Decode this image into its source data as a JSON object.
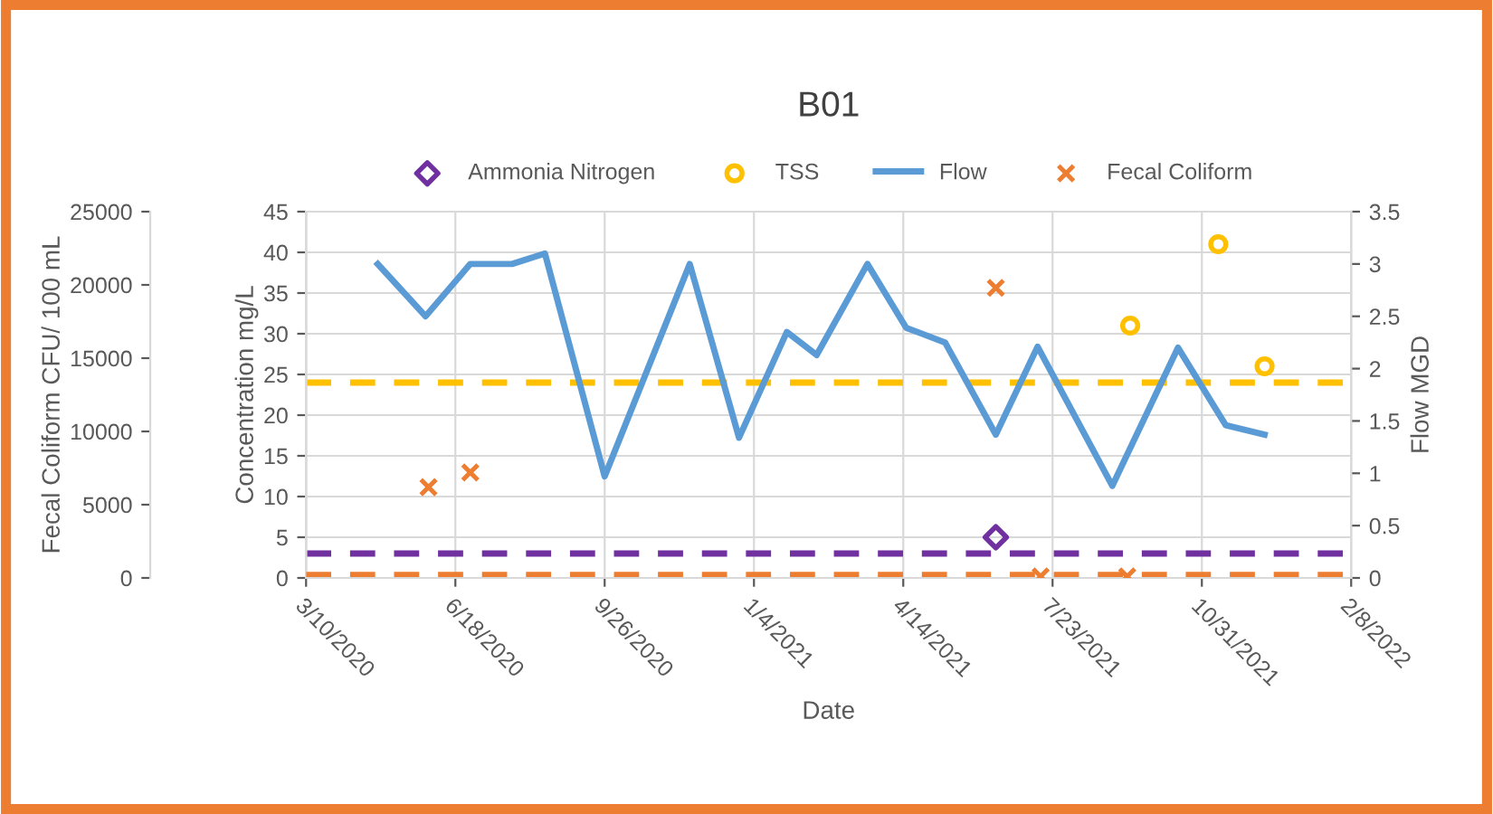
{
  "chart_data": {
    "type": "scatter",
    "title": "B01",
    "xlabel": "Date",
    "ylabel": "Concentration mg/L",
    "y2label": "Flow MGD",
    "y3label": "Fecal Coliform CFU/ 100 mL",
    "xlim": [
      "2020-03-10",
      "2022-02-08"
    ],
    "xticks": [
      {
        "value": "2020-03-10",
        "label": "3/10/2020"
      },
      {
        "value": "2020-06-18",
        "label": "6/18/2020"
      },
      {
        "value": "2020-09-26",
        "label": "9/26/2020"
      },
      {
        "value": "2021-01-04",
        "label": "1/4/2021"
      },
      {
        "value": "2021-04-14",
        "label": "4/14/2021"
      },
      {
        "value": "2021-07-23",
        "label": "7/23/2021"
      },
      {
        "value": "2021-10-31",
        "label": "10/31/2021"
      },
      {
        "value": "2022-02-08",
        "label": "2/8/2022"
      }
    ],
    "ylim": [
      0,
      45
    ],
    "yticks": [
      0,
      5,
      10,
      15,
      20,
      25,
      30,
      35,
      40,
      45
    ],
    "y2lim": [
      0,
      3.5
    ],
    "y2ticks": [
      0,
      0.5,
      1,
      1.5,
      2,
      2.5,
      3,
      3.5
    ],
    "y3lim": [
      0,
      25000
    ],
    "y3ticks": [
      0,
      5000,
      10000,
      15000,
      20000,
      25000
    ],
    "grid": true,
    "legend": "top",
    "series": [
      {
        "name": "Ammonia Nitrogen",
        "marker": "diamond",
        "color": "#7030a0",
        "x": [
          "2021-06-15"
        ],
        "values": [
          5
        ]
      },
      {
        "name": "TSS",
        "marker": "circle",
        "color": "#ffc000",
        "x": [
          "2021-09-13",
          "2021-11-11",
          "2021-12-12"
        ],
        "values": [
          31,
          41,
          26
        ]
      },
      {
        "name": "Flow",
        "type": "line",
        "marker": "none",
        "axis": "y2",
        "color": "#5b9bd5",
        "x": [
          "2020-04-27",
          "2020-05-29",
          "2020-06-28",
          "2020-07-26",
          "2020-08-17",
          "2020-09-26",
          "2020-11-22",
          "2020-12-25",
          "2021-01-26",
          "2021-02-15",
          "2021-03-21",
          "2021-04-16",
          "2021-05-12",
          "2021-06-15",
          "2021-07-13",
          "2021-09-01",
          "2021-10-15",
          "2021-11-16",
          "2021-12-12"
        ],
        "values": [
          3.0,
          2.5,
          3.0,
          3.0,
          3.1,
          0.97,
          3.0,
          1.34,
          2.35,
          2.13,
          3.0,
          2.39,
          2.25,
          1.37,
          2.21,
          0.88,
          2.2,
          1.46,
          1.37
        ]
      },
      {
        "name": "Fecal Coliform",
        "marker": "cross",
        "axis": "y3",
        "color": "#ed7d31",
        "x": [
          "2020-05-31",
          "2020-06-28",
          "2021-06-15",
          "2021-07-15",
          "2021-09-11"
        ],
        "values": [
          6200,
          7200,
          19800,
          100,
          100
        ]
      }
    ],
    "ref_lines": [
      {
        "axis": "y",
        "value": 24,
        "color": "#ffc000",
        "line_style": "dashed"
      },
      {
        "axis": "y",
        "value": 3,
        "color": "#7030a0",
        "line_style": "dashed"
      },
      {
        "axis": "y3",
        "value": 200,
        "color": "#ed7d31",
        "line_style": "dashed"
      }
    ]
  }
}
